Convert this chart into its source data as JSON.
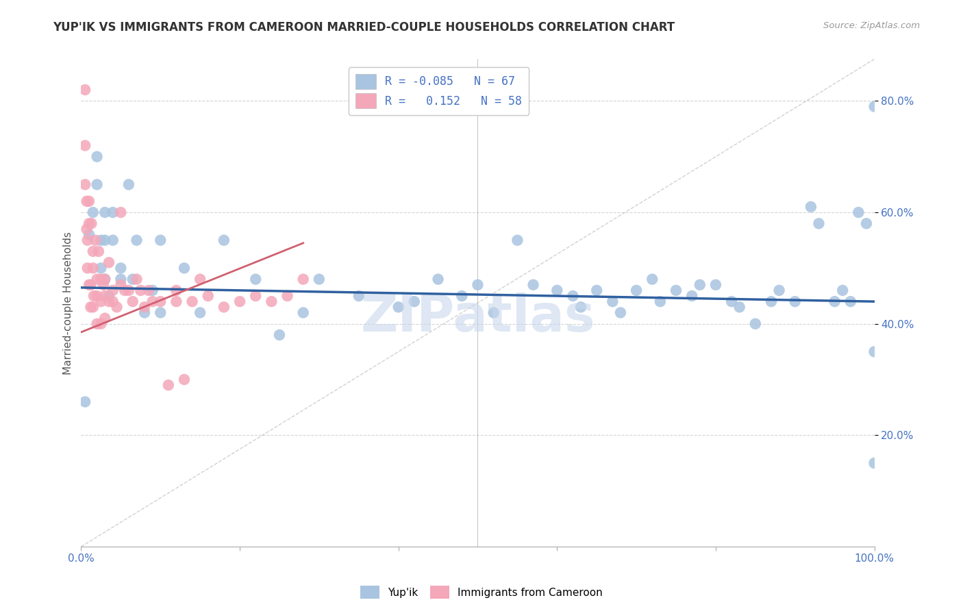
{
  "title": "YUP'IK VS IMMIGRANTS FROM CAMEROON MARRIED-COUPLE HOUSEHOLDS CORRELATION CHART",
  "source": "Source: ZipAtlas.com",
  "ylabel": "Married-couple Households",
  "xlim": [
    0,
    1.0
  ],
  "ylim": [
    0,
    0.875
  ],
  "background_color": "#ffffff",
  "grid_color": "#d0d0d0",
  "blue_color": "#a8c4e0",
  "pink_color": "#f4a7b9",
  "blue_line_color": "#3060a0",
  "pink_line_color": "#d06070",
  "diag_color": "#cccccc",
  "legend_R_blue": "-0.085",
  "legend_N_blue": "67",
  "legend_R_pink": "0.152",
  "legend_N_pink": "58",
  "blue_scatter_x": [
    0.005,
    0.01,
    0.015,
    0.02,
    0.02,
    0.025,
    0.025,
    0.03,
    0.03,
    0.03,
    0.035,
    0.04,
    0.04,
    0.05,
    0.05,
    0.06,
    0.065,
    0.07,
    0.08,
    0.09,
    0.1,
    0.1,
    0.13,
    0.15,
    0.18,
    0.22,
    0.25,
    0.28,
    0.3,
    0.35,
    0.4,
    0.42,
    0.45,
    0.48,
    0.5,
    0.52,
    0.55,
    0.57,
    0.6,
    0.62,
    0.63,
    0.65,
    0.67,
    0.68,
    0.7,
    0.72,
    0.73,
    0.75,
    0.77,
    0.78,
    0.8,
    0.82,
    0.83,
    0.85,
    0.87,
    0.88,
    0.9,
    0.92,
    0.93,
    0.95,
    0.96,
    0.97,
    0.98,
    0.99,
    1.0,
    1.0,
    1.0
  ],
  "blue_scatter_y": [
    0.26,
    0.56,
    0.6,
    0.65,
    0.7,
    0.55,
    0.5,
    0.6,
    0.55,
    0.48,
    0.45,
    0.6,
    0.55,
    0.5,
    0.48,
    0.65,
    0.48,
    0.55,
    0.42,
    0.46,
    0.55,
    0.42,
    0.5,
    0.42,
    0.55,
    0.48,
    0.38,
    0.42,
    0.48,
    0.45,
    0.43,
    0.44,
    0.48,
    0.45,
    0.47,
    0.42,
    0.55,
    0.47,
    0.46,
    0.45,
    0.43,
    0.46,
    0.44,
    0.42,
    0.46,
    0.48,
    0.44,
    0.46,
    0.45,
    0.47,
    0.47,
    0.44,
    0.43,
    0.4,
    0.44,
    0.46,
    0.44,
    0.61,
    0.58,
    0.44,
    0.46,
    0.44,
    0.6,
    0.58,
    0.79,
    0.15,
    0.35
  ],
  "pink_scatter_x": [
    0.005,
    0.005,
    0.005,
    0.007,
    0.007,
    0.008,
    0.008,
    0.01,
    0.01,
    0.01,
    0.012,
    0.012,
    0.013,
    0.015,
    0.015,
    0.015,
    0.016,
    0.018,
    0.02,
    0.02,
    0.02,
    0.022,
    0.025,
    0.025,
    0.025,
    0.028,
    0.03,
    0.03,
    0.03,
    0.035,
    0.035,
    0.04,
    0.04,
    0.045,
    0.05,
    0.05,
    0.055,
    0.06,
    0.065,
    0.07,
    0.075,
    0.08,
    0.085,
    0.09,
    0.1,
    0.11,
    0.12,
    0.13,
    0.14,
    0.15,
    0.16,
    0.18,
    0.2,
    0.22,
    0.24,
    0.26,
    0.28,
    0.12
  ],
  "pink_scatter_y": [
    0.82,
    0.72,
    0.65,
    0.62,
    0.57,
    0.55,
    0.5,
    0.62,
    0.58,
    0.47,
    0.47,
    0.43,
    0.58,
    0.53,
    0.5,
    0.43,
    0.45,
    0.55,
    0.48,
    0.45,
    0.4,
    0.53,
    0.48,
    0.44,
    0.4,
    0.47,
    0.48,
    0.45,
    0.41,
    0.51,
    0.44,
    0.46,
    0.44,
    0.43,
    0.6,
    0.47,
    0.46,
    0.46,
    0.44,
    0.48,
    0.46,
    0.43,
    0.46,
    0.44,
    0.44,
    0.29,
    0.44,
    0.3,
    0.44,
    0.48,
    0.45,
    0.43,
    0.44,
    0.45,
    0.44,
    0.45,
    0.48,
    0.46
  ],
  "watermark": "ZIPatlas",
  "watermark_color": "#c8d8ec",
  "title_fontsize": 12,
  "axis_label_fontsize": 11,
  "tick_fontsize": 11,
  "tick_color": "#4472c4",
  "legend_fontsize": 12
}
